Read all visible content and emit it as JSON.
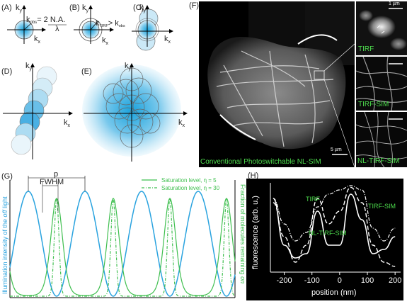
{
  "panels": {
    "A": {
      "label": "(A)",
      "ky": "k",
      "ky_sub": "y",
      "kx": "k",
      "kx_sub": "x",
      "kobs": "k",
      "kobs_sub": "obs",
      "eq": "= 2 N.A.",
      "lambda": "λ"
    },
    "B": {
      "label": "(B)",
      "ky": "k",
      "ky_sub": "y",
      "kx": "k",
      "kx_sub": "x",
      "ktirf": "k",
      "ktirf_sub": "TIRF",
      "gt": "> k",
      "kobs_sub": "obs"
    },
    "C": {
      "label": "(C)",
      "ky": "k",
      "ky_sub": "y",
      "kx": "k",
      "kx_sub": "x"
    },
    "D": {
      "label": "(D)",
      "ky": "k",
      "ky_sub": "y",
      "kx": "k",
      "kx_sub": "x"
    },
    "E": {
      "label": "(E)",
      "ky": "k",
      "ky_sub": "y",
      "kx": "k",
      "kx_sub": "x"
    },
    "F": {
      "label": "(F)",
      "caption": "Conventional Photoswitchable NL-SIM",
      "scale_main": "5 µm",
      "scale_inset": "1 µm",
      "inset_labels": [
        "TIRF",
        "TIRF-SIM",
        "NL-TIRF-SIM"
      ]
    },
    "G": {
      "label": "(G)",
      "p": "p",
      "fwhm": "FWHM",
      "legend": [
        "Saturation level, η = 5",
        "Saturation level, η = 30"
      ],
      "ylabel_left_pre": "Illumination intensity of the ",
      "ylabel_left_em": "off",
      "ylabel_left_post": " light",
      "ylabel_right_pre": "Fraction of molecules remaining ",
      "ylabel_right_em": "on",
      "colors": {
        "blue": "#2aa3df",
        "green": "#3fbf4f"
      }
    },
    "H": {
      "label": "(H)",
      "ylabel": "fluorescence (arb. u.)",
      "xlabel": "position (nm)",
      "xticks": [
        "-200",
        "-100",
        "0",
        "100",
        "200"
      ],
      "series_labels": [
        "TIRF",
        "TIRF-SIM",
        "NL-TIRF-SIM"
      ]
    }
  },
  "chart_data": {
    "type": "line",
    "xlabel": "position (nm)",
    "ylabel": "fluorescence (arb. u.)",
    "xlim": [
      -250,
      220
    ],
    "ylim": [
      0,
      1
    ],
    "series": [
      {
        "name": "TIRF",
        "x": [
          -240,
          -200,
          -160,
          -120,
          -80,
          -40,
          0,
          40,
          80,
          120,
          160,
          200
        ],
        "values": [
          0.85,
          0.55,
          0.35,
          0.45,
          0.75,
          0.9,
          0.95,
          1.0,
          0.95,
          0.5,
          0.35,
          0.5
        ]
      },
      {
        "name": "TIRF-SIM",
        "x": [
          -240,
          -200,
          -160,
          -120,
          -80,
          -40,
          0,
          40,
          80,
          120,
          160,
          200
        ],
        "values": [
          0.8,
          0.4,
          0.1,
          0.3,
          0.85,
          0.55,
          0.7,
          0.98,
          0.8,
          0.3,
          0.1,
          0.05
        ]
      },
      {
        "name": "NL-TIRF-SIM",
        "x": [
          -240,
          -200,
          -160,
          -120,
          -80,
          -40,
          0,
          40,
          80,
          120,
          160,
          200
        ],
        "values": [
          0.85,
          0.3,
          0.15,
          0.2,
          0.7,
          0.3,
          0.3,
          0.9,
          0.6,
          0.2,
          0.25,
          0.4
        ]
      }
    ]
  }
}
